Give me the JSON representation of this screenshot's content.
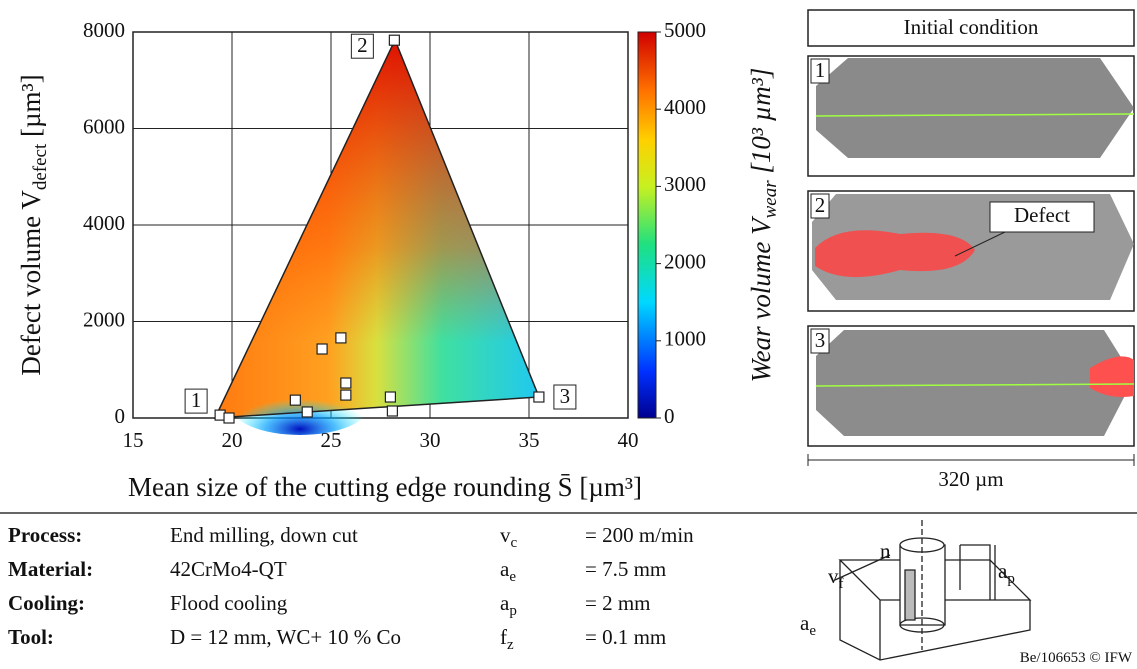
{
  "chart_data": {
    "type": "scatter",
    "x_label": {
      "text": "Mean size of the cutting edge rounding S̄ [µm³]"
    },
    "y_label": {
      "main": "Defect volume V",
      "sub": "defect",
      "unit": " [µm³]"
    },
    "x": [
      19.4,
      19.85,
      23.2,
      23.8,
      24.55,
      25.5,
      25.75,
      25.75,
      28.0,
      28.1,
      28.2,
      35.5
    ],
    "y": [
      60,
      0,
      370,
      125,
      1430,
      1660,
      725,
      475,
      435,
      145,
      7830,
      435
    ],
    "xlim": [
      15,
      40
    ],
    "xticks": [
      15,
      20,
      25,
      30,
      35,
      40
    ],
    "ylim": [
      0,
      8000
    ],
    "yticks": [
      0,
      2000,
      4000,
      6000,
      8000
    ],
    "grid": true,
    "point_color": "#ffffff",
    "annotations": [
      {
        "text": "1",
        "x": 19.4,
        "y": 60
      },
      {
        "text": "2",
        "x": 28.2,
        "y": 7830
      },
      {
        "text": "3",
        "x": 35.5,
        "y": 435
      }
    ],
    "colorbar": {
      "lim": [
        0,
        5000
      ],
      "ticks": [
        0,
        1000,
        2000,
        3000,
        4000,
        5000
      ],
      "label_main": "Wear volume V",
      "label_sub": "wear",
      "label_unit": " [10³ µm³]"
    }
  },
  "images": {
    "title": "Initial condition",
    "panels": [
      "1",
      "2",
      "3"
    ],
    "defect_label": "Defect",
    "scale": "320 µm"
  },
  "table": {
    "rows": [
      [
        "Process:",
        "End milling, down cut",
        "v",
        "c",
        "= 200 m/min"
      ],
      [
        "Material:",
        "42CrMo4-QT",
        "a",
        "e",
        "= 7.5 mm"
      ],
      [
        "Cooling:",
        "Flood cooling",
        "a",
        "p",
        "= 2 mm"
      ],
      [
        "Tool:",
        "D = 12 mm, WC+ 10 % Co",
        "f",
        "z",
        "= 0.1 mm"
      ]
    ]
  },
  "sketch": {
    "n": "n",
    "vf": "v",
    "vf_sub": "f",
    "ap": "a",
    "ap_sub": "p",
    "ae": "a",
    "ae_sub": "e"
  },
  "footer": "Be/106653 © IFW"
}
